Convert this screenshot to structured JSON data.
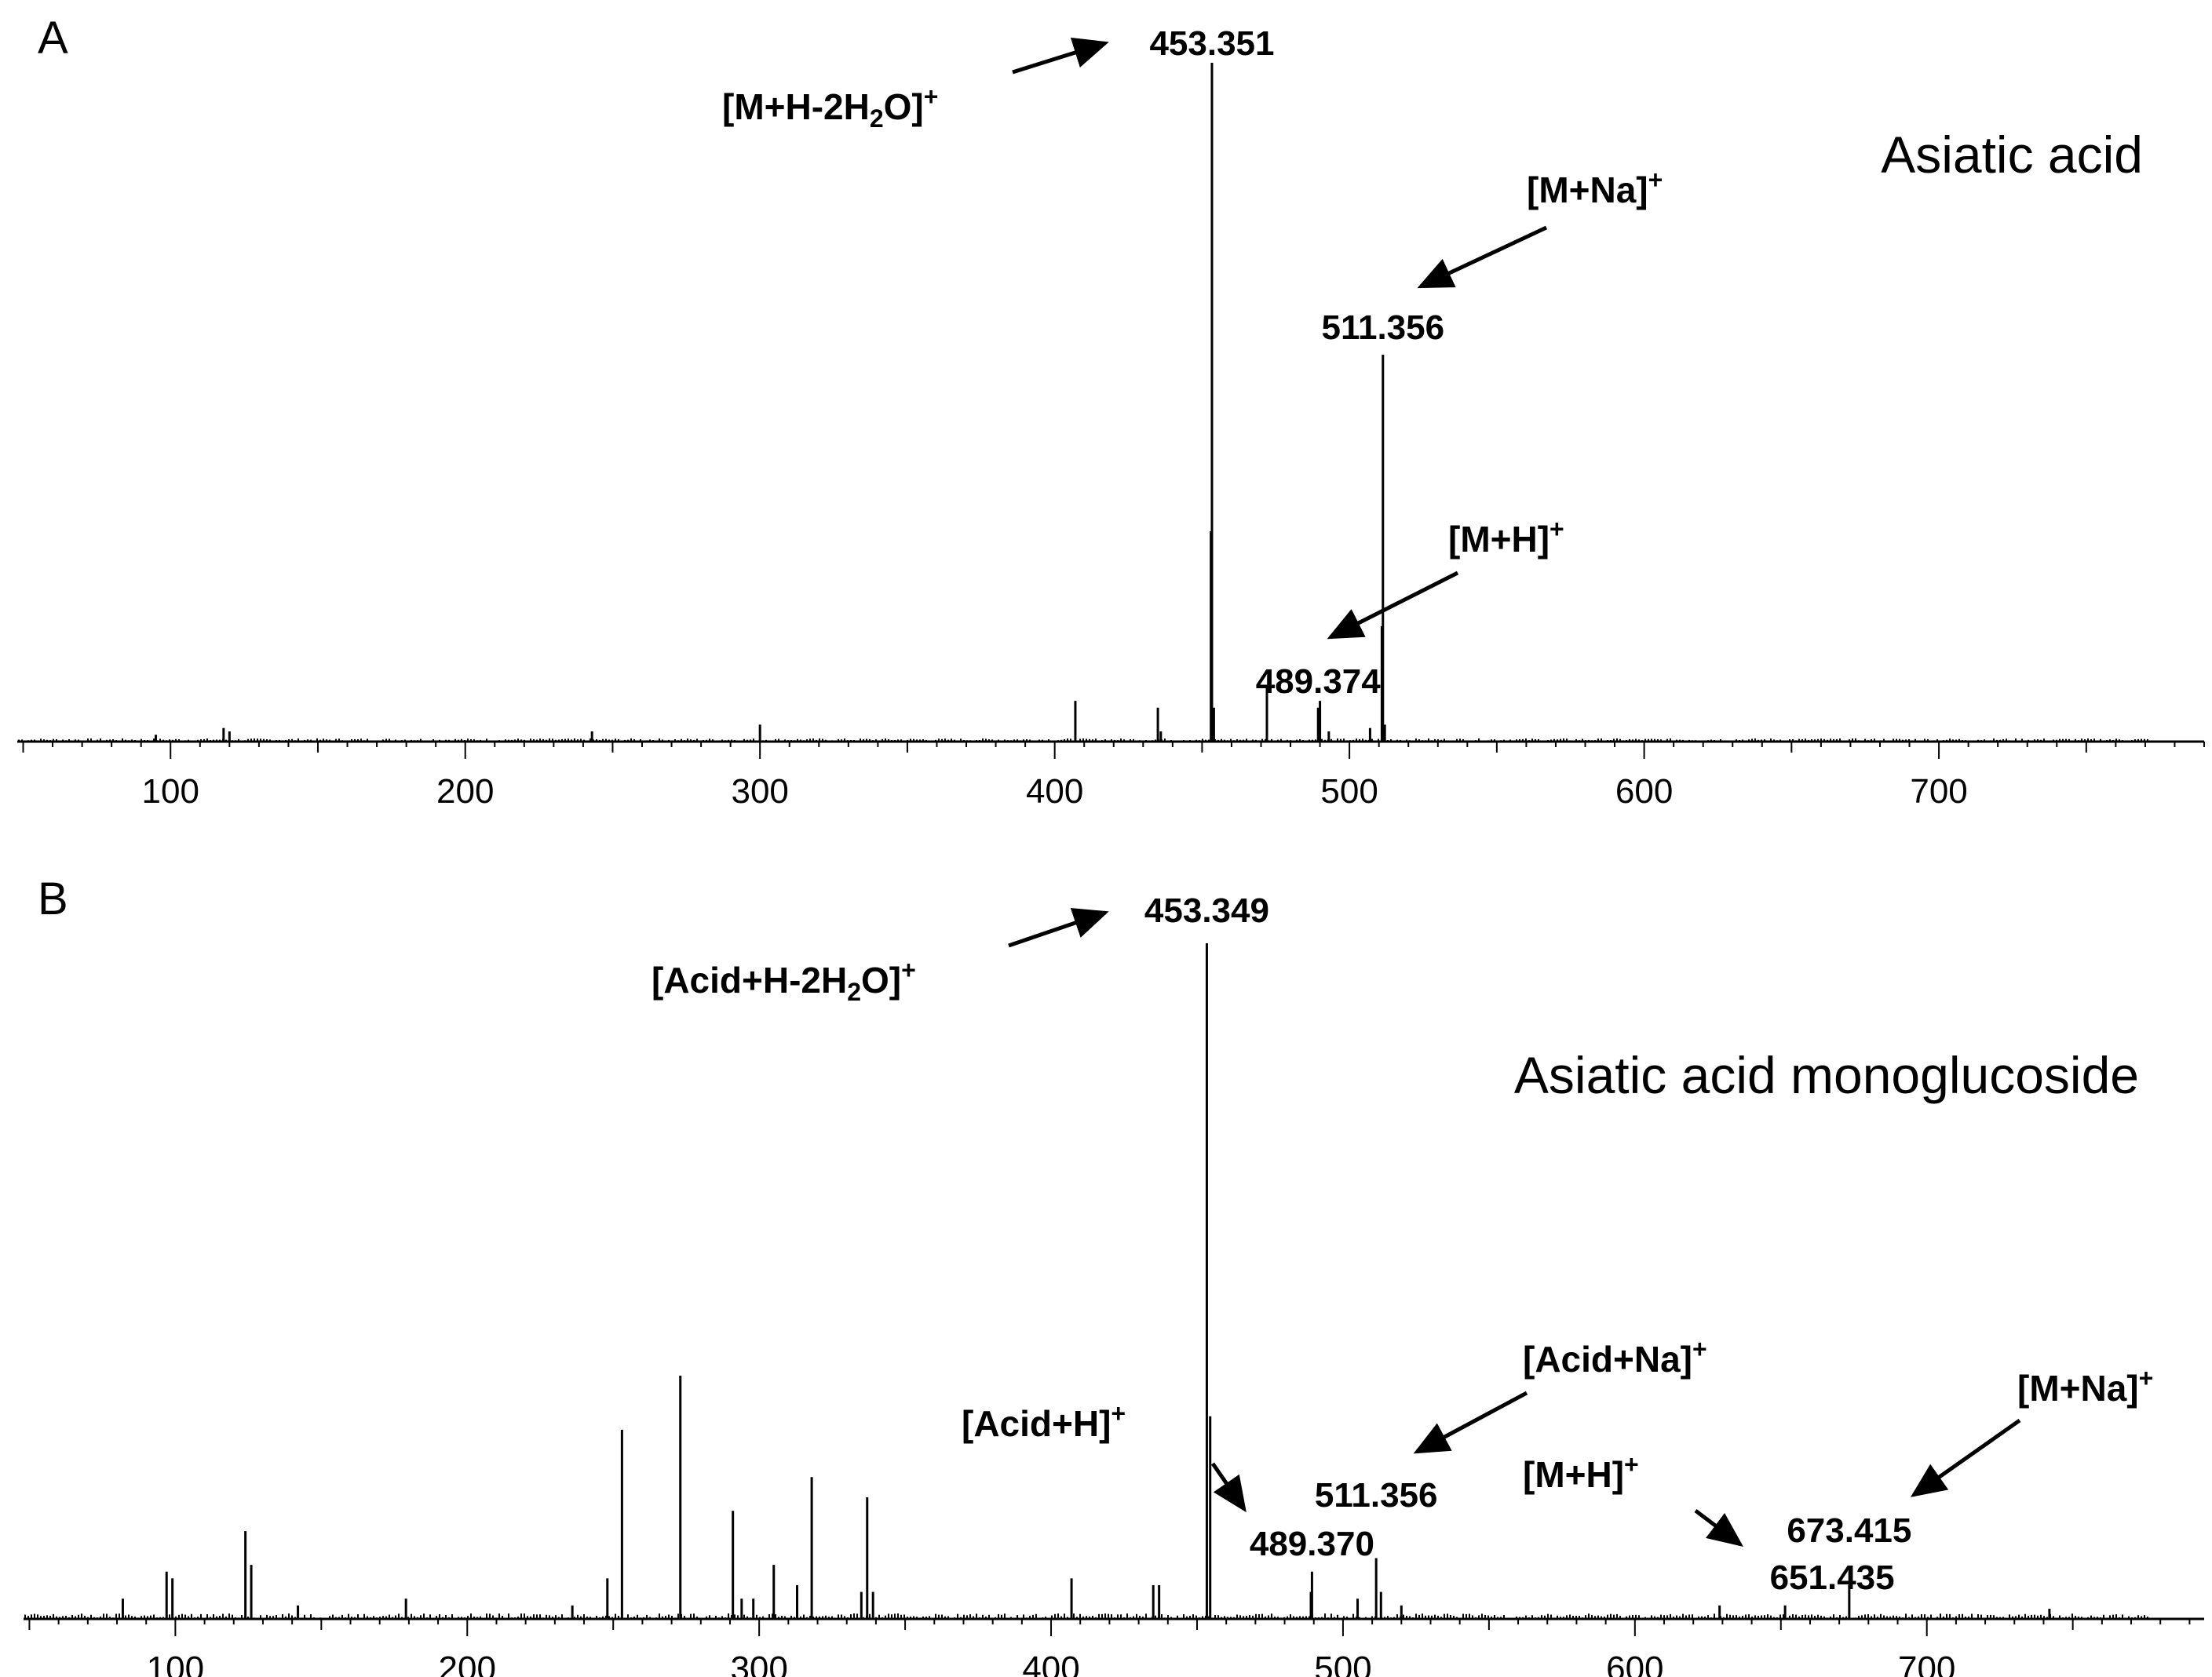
{
  "chart_data": [
    {
      "type": "bar",
      "panel": "A",
      "title": "Asiatic acid",
      "xlabel": "",
      "ylabel": "",
      "xlim": [
        48,
        790
      ],
      "ylim": [
        0,
        100
      ],
      "xticks": [
        100,
        200,
        300,
        400,
        500,
        600,
        700
      ],
      "grid": false,
      "peaks": [
        {
          "x": 453.35,
          "y": 100
        },
        {
          "x": 453.0,
          "y": 31
        },
        {
          "x": 511.36,
          "y": 57
        },
        {
          "x": 511.0,
          "y": 17
        },
        {
          "x": 489.37,
          "y": 5
        },
        {
          "x": 472.0,
          "y": 8
        },
        {
          "x": 490.0,
          "y": 6
        },
        {
          "x": 407.0,
          "y": 6
        },
        {
          "x": 435.0,
          "y": 5
        },
        {
          "x": 454.0,
          "y": 5
        },
        {
          "x": 300.0,
          "y": 2.5
        },
        {
          "x": 118.0,
          "y": 2
        },
        {
          "x": 120.0,
          "y": 1.5
        },
        {
          "x": 95.0,
          "y": 1
        },
        {
          "x": 243.0,
          "y": 1.5
        },
        {
          "x": 436.0,
          "y": 1.5
        },
        {
          "x": 493.0,
          "y": 1.5
        },
        {
          "x": 512.0,
          "y": 2.5
        },
        {
          "x": 507.0,
          "y": 2
        }
      ],
      "annotations": [
        {
          "label": "453.351",
          "x": 453.35
        },
        {
          "label": "511.356",
          "x": 511.36
        },
        {
          "label": "489.374",
          "x": 489.37
        }
      ],
      "ions": [
        {
          "base": "[M+H-2H",
          "sub": "2",
          "tail": "O]",
          "sup": "+"
        },
        {
          "base": "[M+Na]",
          "sub": "",
          "tail": "",
          "sup": "+"
        },
        {
          "base": "[M+H]",
          "sub": "",
          "tail": "",
          "sup": "+"
        }
      ]
    },
    {
      "type": "bar",
      "panel": "B",
      "title": "Asiatic acid monoglucoside",
      "xlabel": "",
      "ylabel": "",
      "xlim": [
        48,
        795
      ],
      "ylim": [
        0,
        100
      ],
      "xticks": [
        100,
        200,
        300,
        400,
        500,
        600,
        700
      ],
      "grid": false,
      "peaks": [
        {
          "x": 453.35,
          "y": 100
        },
        {
          "x": 454.5,
          "y": 30
        },
        {
          "x": 273.0,
          "y": 36
        },
        {
          "x": 253.0,
          "y": 28
        },
        {
          "x": 318.0,
          "y": 21
        },
        {
          "x": 337.0,
          "y": 18
        },
        {
          "x": 291.0,
          "y": 16
        },
        {
          "x": 124.0,
          "y": 13
        },
        {
          "x": 126.0,
          "y": 8
        },
        {
          "x": 97.0,
          "y": 7
        },
        {
          "x": 99.0,
          "y": 6
        },
        {
          "x": 305.0,
          "y": 8
        },
        {
          "x": 248.0,
          "y": 6
        },
        {
          "x": 313.0,
          "y": 5
        },
        {
          "x": 407.0,
          "y": 6
        },
        {
          "x": 435.0,
          "y": 5
        },
        {
          "x": 437.0,
          "y": 5
        },
        {
          "x": 511.36,
          "y": 9
        },
        {
          "x": 489.37,
          "y": 7
        },
        {
          "x": 673.42,
          "y": 5
        },
        {
          "x": 651.44,
          "y": 2
        },
        {
          "x": 629.0,
          "y": 2
        },
        {
          "x": 82.0,
          "y": 3
        },
        {
          "x": 142.0,
          "y": 2
        },
        {
          "x": 179.0,
          "y": 3
        },
        {
          "x": 236.0,
          "y": 2
        },
        {
          "x": 335.0,
          "y": 4
        },
        {
          "x": 339.0,
          "y": 4
        },
        {
          "x": 294.0,
          "y": 3
        },
        {
          "x": 298.0,
          "y": 3
        },
        {
          "x": 489.0,
          "y": 4
        },
        {
          "x": 505.0,
          "y": 3
        },
        {
          "x": 513.0,
          "y": 4
        },
        {
          "x": 520.0,
          "y": 2
        },
        {
          "x": 742.0,
          "y": 1.5
        }
      ],
      "annotations": [
        {
          "label": "453.349",
          "x": 453.35
        },
        {
          "label": "489.370",
          "x": 489.37
        },
        {
          "label": "511.356",
          "x": 511.36
        },
        {
          "label": "651.435",
          "x": 651.44
        },
        {
          "label": "673.415",
          "x": 673.42
        }
      ],
      "ions": [
        {
          "base": "[Acid+H-2H",
          "sub": "2",
          "tail": "O]",
          "sup": "+"
        },
        {
          "base": "[Acid+Na]",
          "sub": "",
          "tail": "",
          "sup": "+"
        },
        {
          "base": "[Acid+H]",
          "sub": "",
          "tail": "",
          "sup": "+"
        },
        {
          "base": "[M+H]",
          "sub": "",
          "tail": "",
          "sup": "+"
        },
        {
          "base": "[M+Na]",
          "sub": "",
          "tail": "",
          "sup": "+"
        }
      ]
    }
  ]
}
